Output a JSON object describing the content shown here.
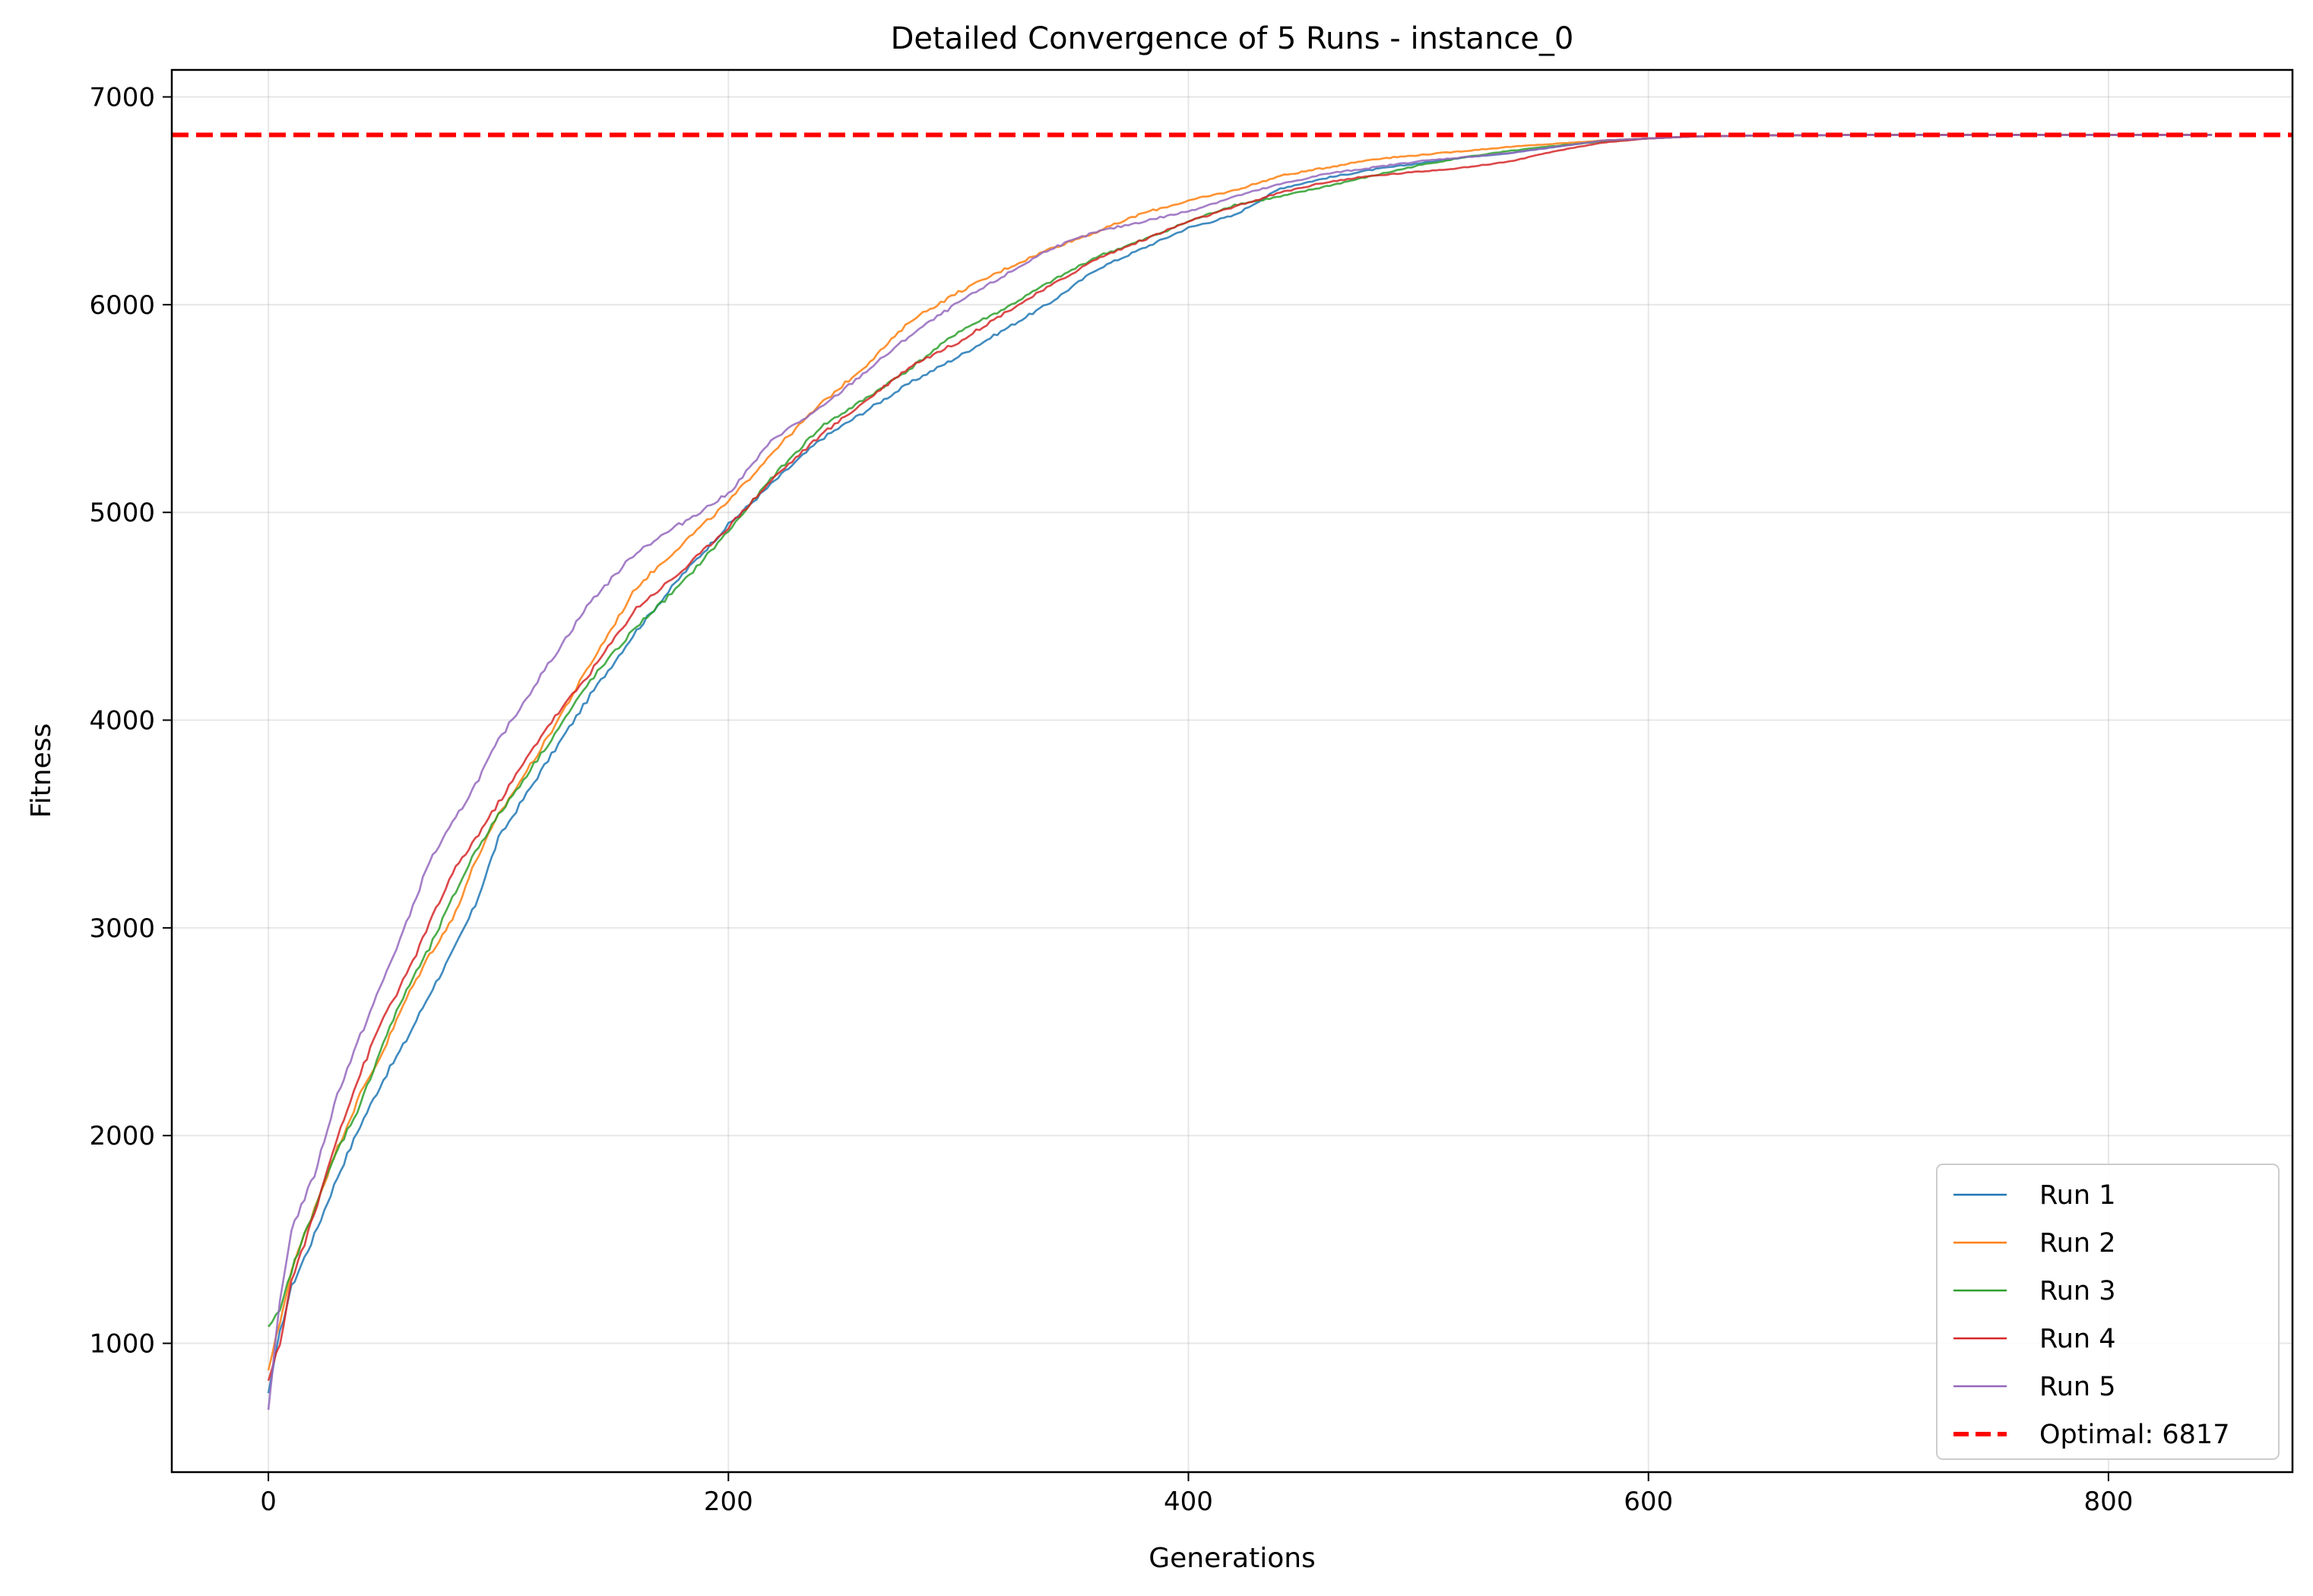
{
  "chart_data": {
    "type": "line",
    "title": "Detailed Convergence of 5 Runs - instance_0",
    "xlabel": "Generations",
    "ylabel": "Fitness",
    "xlim": [
      -42,
      880
    ],
    "ylim": [
      380,
      7130
    ],
    "xticks": [
      0,
      200,
      400,
      600,
      800
    ],
    "yticks": [
      1000,
      2000,
      3000,
      4000,
      5000,
      6000,
      7000
    ],
    "grid": true,
    "legend_position": "lower right",
    "optimal": {
      "label": "Optimal: 6817",
      "value": 6817,
      "color": "#ff0000",
      "style": "dashed"
    },
    "series": [
      {
        "name": "Run 1",
        "color": "#1f77b4",
        "x": [
          0,
          5,
          10,
          20,
          30,
          40,
          50,
          60,
          70,
          80,
          90,
          100,
          120,
          140,
          160,
          180,
          200,
          220,
          240,
          260,
          280,
          300,
          320,
          340,
          360,
          380,
          400,
          420,
          440,
          460,
          480,
          500,
          520,
          540,
          560,
          580,
          600,
          620,
          650,
          700,
          750,
          800,
          845
        ],
        "y": [
          760,
          1050,
          1270,
          1520,
          1800,
          2050,
          2270,
          2460,
          2680,
          2880,
          3110,
          3430,
          3780,
          4120,
          4430,
          4700,
          4940,
          5150,
          5350,
          5490,
          5630,
          5750,
          5880,
          6010,
          6170,
          6270,
          6370,
          6430,
          6560,
          6610,
          6650,
          6680,
          6710,
          6730,
          6760,
          6790,
          6800,
          6810,
          6815,
          6817,
          6817,
          6817,
          6817
        ]
      },
      {
        "name": "Run 2",
        "color": "#ff7f0e",
        "x": [
          0,
          5,
          10,
          20,
          30,
          40,
          50,
          60,
          70,
          80,
          90,
          100,
          120,
          140,
          160,
          180,
          200,
          220,
          240,
          260,
          280,
          300,
          320,
          340,
          360,
          380,
          400,
          420,
          440,
          460,
          480,
          500,
          520,
          540,
          560,
          580,
          600,
          620,
          650,
          700,
          750,
          800,
          845
        ],
        "y": [
          870,
          1100,
          1350,
          1650,
          1940,
          2200,
          2410,
          2660,
          2870,
          3040,
          3320,
          3540,
          3890,
          4270,
          4640,
          4850,
          5050,
          5300,
          5520,
          5710,
          5930,
          6060,
          6170,
          6270,
          6350,
          6440,
          6500,
          6550,
          6620,
          6660,
          6700,
          6720,
          6740,
          6760,
          6775,
          6790,
          6800,
          6810,
          6815,
          6817,
          6817,
          6817,
          6817
        ]
      },
      {
        "name": "Run 3",
        "color": "#2ca02c",
        "x": [
          0,
          5,
          10,
          20,
          30,
          40,
          50,
          60,
          70,
          80,
          90,
          100,
          120,
          140,
          160,
          180,
          200,
          220,
          240,
          260,
          280,
          300,
          320,
          340,
          360,
          380,
          400,
          420,
          440,
          460,
          480,
          500,
          520,
          540,
          560,
          580,
          600,
          620,
          650,
          700,
          750,
          800,
          845
        ],
        "y": [
          1080,
          1150,
          1350,
          1650,
          1930,
          2150,
          2450,
          2700,
          2900,
          3140,
          3370,
          3540,
          3860,
          4190,
          4450,
          4660,
          4910,
          5180,
          5410,
          5550,
          5700,
          5870,
          5980,
          6110,
          6230,
          6310,
          6400,
          6480,
          6520,
          6570,
          6620,
          6670,
          6710,
          6740,
          6765,
          6785,
          6800,
          6810,
          6815,
          6817,
          6817,
          6817,
          6817
        ]
      },
      {
        "name": "Run 4",
        "color": "#d62728",
        "x": [
          0,
          5,
          10,
          20,
          30,
          40,
          50,
          60,
          70,
          80,
          90,
          100,
          120,
          140,
          160,
          180,
          200,
          220,
          240,
          260,
          280,
          300,
          320,
          340,
          360,
          380,
          400,
          420,
          440,
          460,
          480,
          500,
          520,
          540,
          560,
          580,
          600,
          620,
          650,
          700,
          750,
          800,
          845
        ],
        "y": [
          820,
          1000,
          1300,
          1620,
          2000,
          2300,
          2570,
          2770,
          3020,
          3260,
          3430,
          3600,
          3950,
          4230,
          4540,
          4720,
          4930,
          5170,
          5370,
          5540,
          5710,
          5820,
          5960,
          6090,
          6220,
          6310,
          6400,
          6470,
          6540,
          6590,
          6620,
          6640,
          6660,
          6690,
          6740,
          6780,
          6800,
          6810,
          6815,
          6817,
          6817,
          6817,
          6817
        ]
      },
      {
        "name": "Run 5",
        "color": "#9467bd",
        "x": [
          0,
          5,
          10,
          20,
          30,
          40,
          50,
          60,
          70,
          80,
          90,
          100,
          120,
          140,
          160,
          180,
          200,
          220,
          240,
          260,
          280,
          300,
          320,
          340,
          360,
          380,
          400,
          420,
          440,
          460,
          480,
          500,
          520,
          540,
          560,
          580,
          600,
          620,
          650,
          700,
          750,
          800,
          845
        ],
        "y": [
          680,
          1200,
          1550,
          1810,
          2200,
          2480,
          2750,
          3020,
          3320,
          3500,
          3690,
          3900,
          4240,
          4570,
          4810,
          4950,
          5090,
          5360,
          5500,
          5680,
          5860,
          6010,
          6140,
          6270,
          6350,
          6400,
          6450,
          6520,
          6580,
          6630,
          6660,
          6690,
          6710,
          6730,
          6760,
          6790,
          6800,
          6810,
          6815,
          6817,
          6817,
          6817,
          6817
        ]
      }
    ]
  }
}
